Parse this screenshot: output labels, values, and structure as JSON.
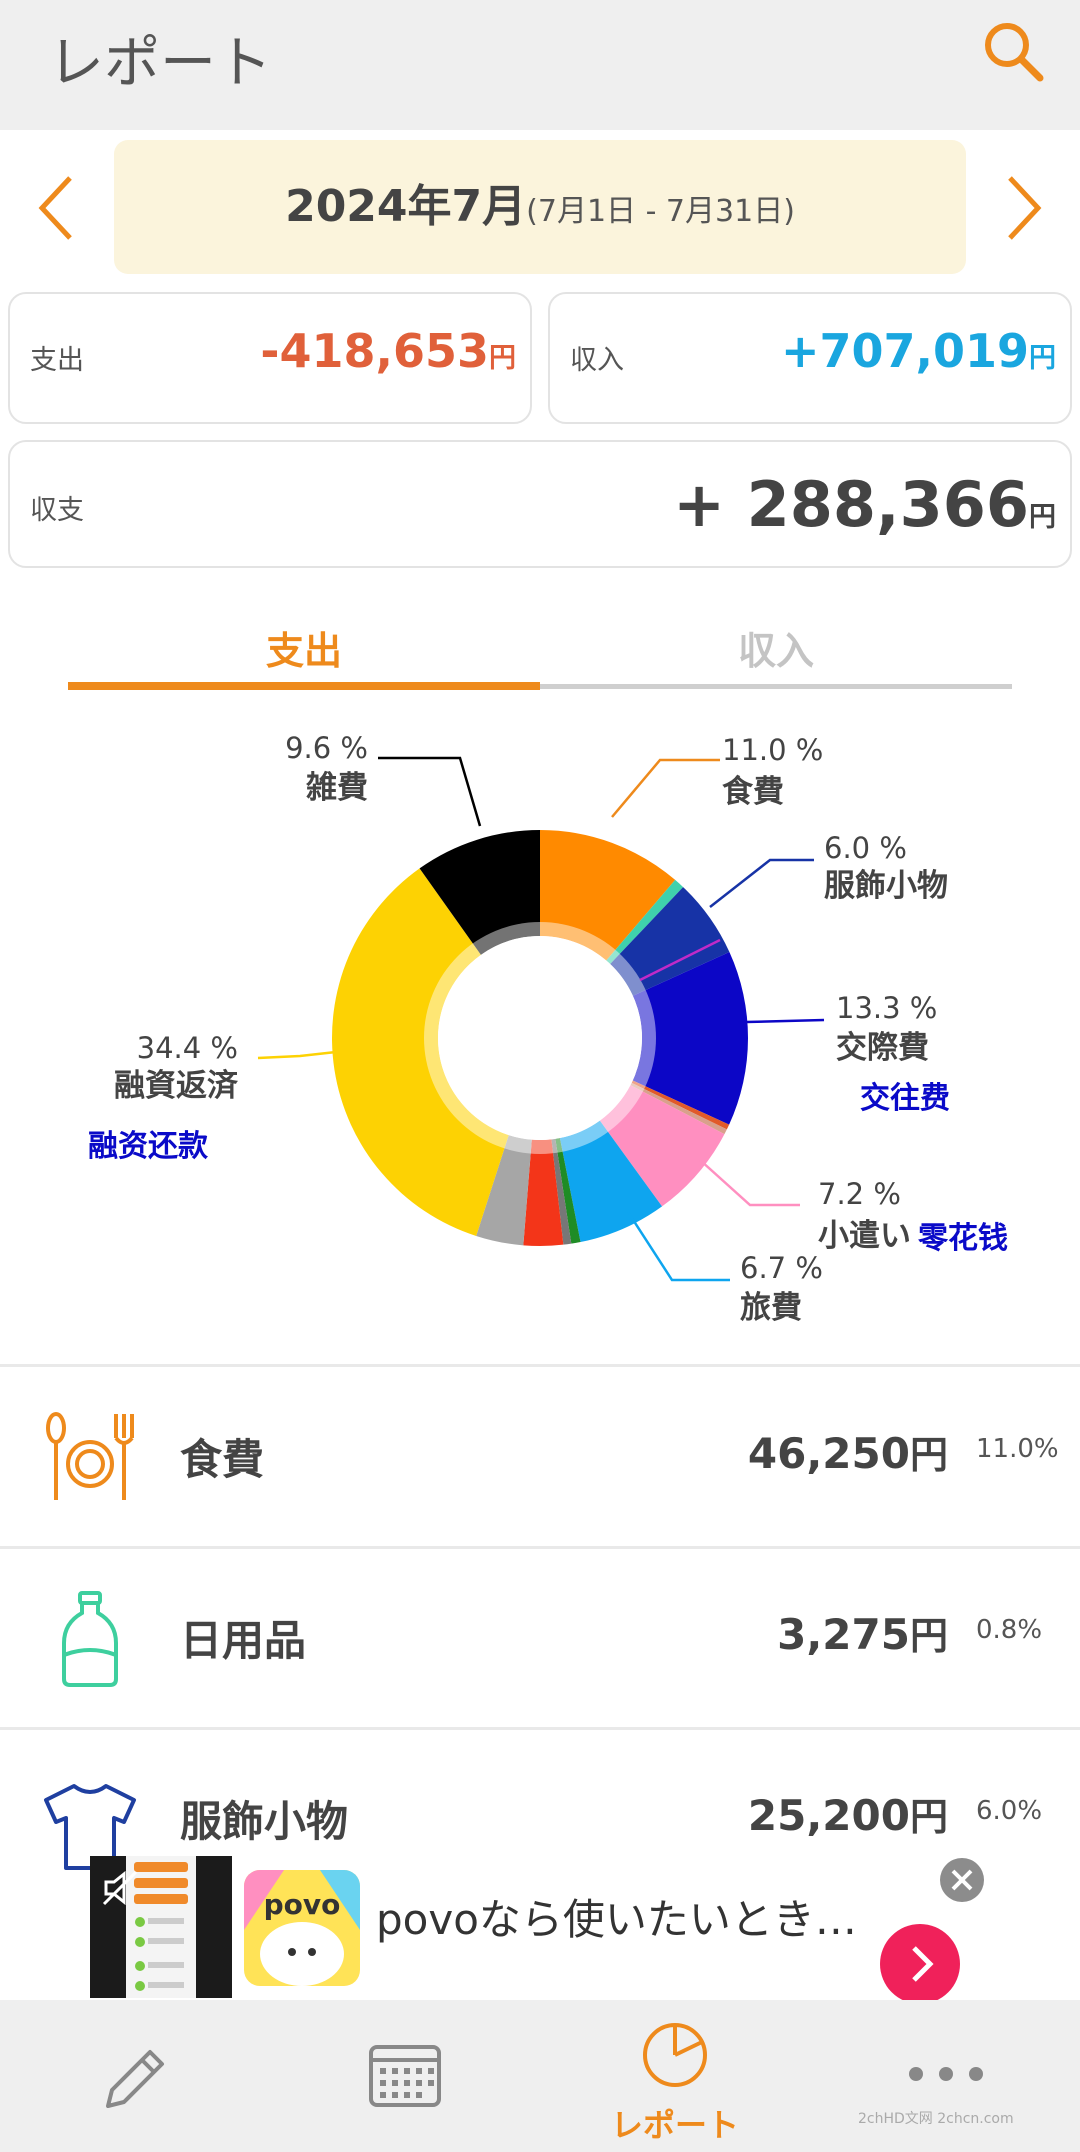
{
  "header": {
    "title": "レポート",
    "search_icon": "search-icon"
  },
  "month": {
    "label": "2024年7月",
    "range": "(7月1日 - 7月31日)"
  },
  "summary": {
    "expense": {
      "label": "支出",
      "value": "-418,653",
      "unit": "円"
    },
    "income": {
      "label": "収入",
      "value": "+707,019",
      "unit": "円"
    },
    "balance": {
      "label": "収支",
      "value": "+ 288,366",
      "unit": "円"
    }
  },
  "tabs": [
    {
      "label": "支出",
      "active": true
    },
    {
      "label": "収入",
      "active": false
    }
  ],
  "chart_data": {
    "type": "pie",
    "donut": true,
    "slices": [
      {
        "pct_label": "11.0 %",
        "name": "食費",
        "value": 11.0,
        "color": "#ff8a00"
      },
      {
        "pct_label": "",
        "name": "",
        "value": 0.8,
        "color": "#3fd1ac"
      },
      {
        "pct_label": "6.0 %",
        "name": "服飾小物",
        "value": 6.0,
        "color": "#1733a6"
      },
      {
        "pct_label": "13.3 %",
        "name": "交際費",
        "value": 13.3,
        "color": "#0c06c6"
      },
      {
        "pct_label": "",
        "name": "",
        "value": 0.4,
        "color": "#e15a2a"
      },
      {
        "pct_label": "",
        "name": "",
        "value": 0.4,
        "color": "#d9a08c"
      },
      {
        "pct_label": "7.2 %",
        "name": "小遣い",
        "value": 7.2,
        "color": "#ff8fc0"
      },
      {
        "pct_label": "6.7 %",
        "name": "旅費",
        "value": 6.7,
        "color": "#0ea5ef"
      },
      {
        "pct_label": "",
        "name": "",
        "value": 0.7,
        "color": "#1f8c25"
      },
      {
        "pct_label": "",
        "name": "",
        "value": 0.6,
        "color": "#777777"
      },
      {
        "pct_label": "",
        "name": "",
        "value": 3.0,
        "color": "#f33519"
      },
      {
        "pct_label": "",
        "name": "",
        "value": 3.6,
        "color": "#a6a6a6"
      },
      {
        "pct_label": "34.4 %",
        "name": "融資返済",
        "value": 34.4,
        "color": "#fdd203"
      },
      {
        "pct_label": "9.6 %",
        "name": "雑費",
        "value": 9.6,
        "color": "#000000"
      }
    ],
    "annotations": [
      {
        "text": "交往费",
        "near": "交際費",
        "color": "#0a0ac8"
      },
      {
        "text": "零花钱",
        "near": "小遣い",
        "color": "#0a0ac8"
      },
      {
        "text": "融资还款",
        "near": "融資返済",
        "color": "#0a0ac8"
      }
    ]
  },
  "categories": [
    {
      "name": "食費",
      "amount": "46,250",
      "unit": "円",
      "pct": "11.0%",
      "icon": "cutlery-icon",
      "color": "#ee8a1c"
    },
    {
      "name": "日用品",
      "amount": "3,275",
      "unit": "円",
      "pct": "0.8%",
      "icon": "bottle-icon",
      "color": "#3ecf9e"
    },
    {
      "name": "服飾小物",
      "amount": "25,200",
      "unit": "円",
      "pct": "6.0%",
      "icon": "tshirt-icon",
      "color": "#1f3fa0"
    }
  ],
  "ad": {
    "text": "povoなら使いたいとき…",
    "logo_text": "povo"
  },
  "bottom_nav": [
    {
      "name": "pencil-icon",
      "label": ""
    },
    {
      "name": "calendar-icon",
      "label": ""
    },
    {
      "name": "pie-chart-icon",
      "label": "レポート",
      "active": true
    },
    {
      "name": "more-icon",
      "label": ""
    }
  ],
  "watermark": "2chHD文网 2chcn.com"
}
